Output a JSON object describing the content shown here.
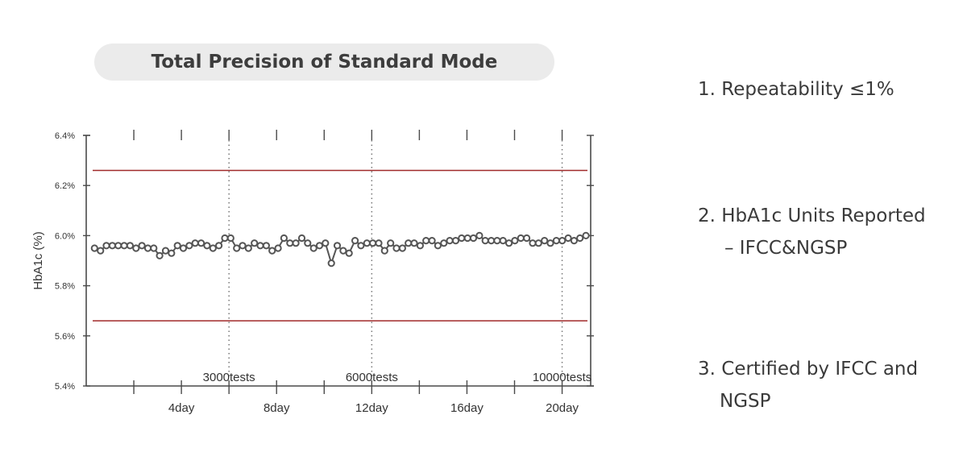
{
  "title": "Total Precision of Standard Mode",
  "features": [
    {
      "line1": "1. Repeatability ≤1%",
      "line2": ""
    },
    {
      "line1": "2. HbA1c Units Reported",
      "line2": "– IFCC&NGSP"
    },
    {
      "line1": "3. Certified by IFCC and",
      "line2": "NGSP"
    }
  ],
  "chart_data": {
    "type": "line",
    "ylabel": "HbA1c (%)",
    "ylim": [
      5.4,
      6.4
    ],
    "yticks": [
      "6.4%",
      "6.2%",
      "6.0%",
      "5.8%",
      "5.6%",
      "5.4%"
    ],
    "ytick_values": [
      6.4,
      6.2,
      6.0,
      5.8,
      5.6,
      5.4
    ],
    "xlim": [
      0,
      21.2
    ],
    "xticks": [
      {
        "label": "4day",
        "x": 4
      },
      {
        "label": "8day",
        "x": 8
      },
      {
        "label": "12day",
        "x": 12
      },
      {
        "label": "16day",
        "x": 16
      },
      {
        "label": "20day",
        "x": 20
      }
    ],
    "control_limits": [
      6.26,
      5.66
    ],
    "markers": [
      {
        "label": "3000tests",
        "x": 6
      },
      {
        "label": "6000tests",
        "x": 12
      },
      {
        "label": "10000tests",
        "x": 20
      }
    ],
    "series": [
      {
        "values": [
          5.95,
          5.94,
          5.96,
          5.96,
          5.96,
          5.96,
          5.96,
          5.95,
          5.96,
          5.95,
          5.95,
          5.92,
          5.94,
          5.93,
          5.96,
          5.95,
          5.96,
          5.97,
          5.97,
          5.96,
          5.95,
          5.96,
          5.99,
          5.99,
          5.95,
          5.96,
          5.95,
          5.97,
          5.96,
          5.96,
          5.94,
          5.95,
          5.99,
          5.97,
          5.97,
          5.99,
          5.97,
          5.95,
          5.96,
          5.97,
          5.89,
          5.96,
          5.94,
          5.93,
          5.98,
          5.96,
          5.97,
          5.97,
          5.97,
          5.94,
          5.97,
          5.95,
          5.95,
          5.97,
          5.97,
          5.96,
          5.98,
          5.98,
          5.96,
          5.97,
          5.98,
          5.98,
          5.99,
          5.99,
          5.99,
          6.0,
          5.98,
          5.98,
          5.98,
          5.98,
          5.97,
          5.98,
          5.99,
          5.99,
          5.97,
          5.97,
          5.98,
          5.97,
          5.98,
          5.98,
          5.99,
          5.98,
          5.99,
          6.0
        ]
      }
    ]
  }
}
